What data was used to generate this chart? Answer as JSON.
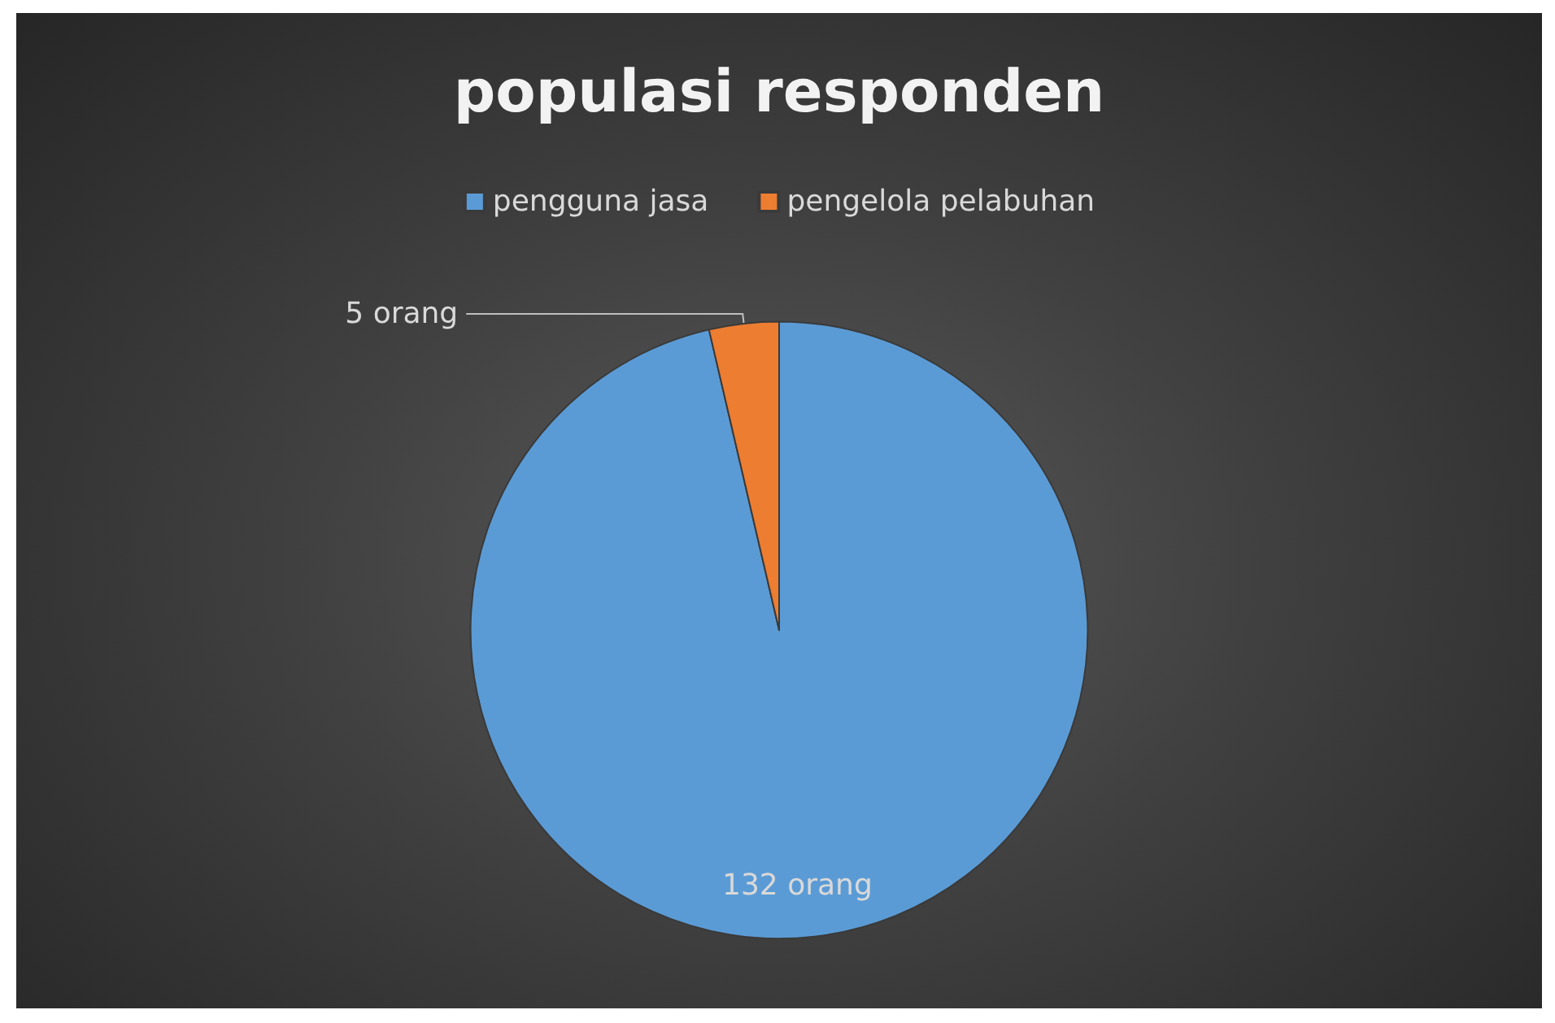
{
  "chart_data": {
    "type": "pie",
    "title": "populasi responden",
    "categories": [
      "pengguna jasa",
      "pengelola pelabuhan"
    ],
    "values": [
      132,
      5
    ],
    "colors": [
      "#5b9bd5",
      "#ed7d31"
    ],
    "value_labels": [
      "132 orang",
      "5 orang"
    ],
    "legend": "top"
  }
}
